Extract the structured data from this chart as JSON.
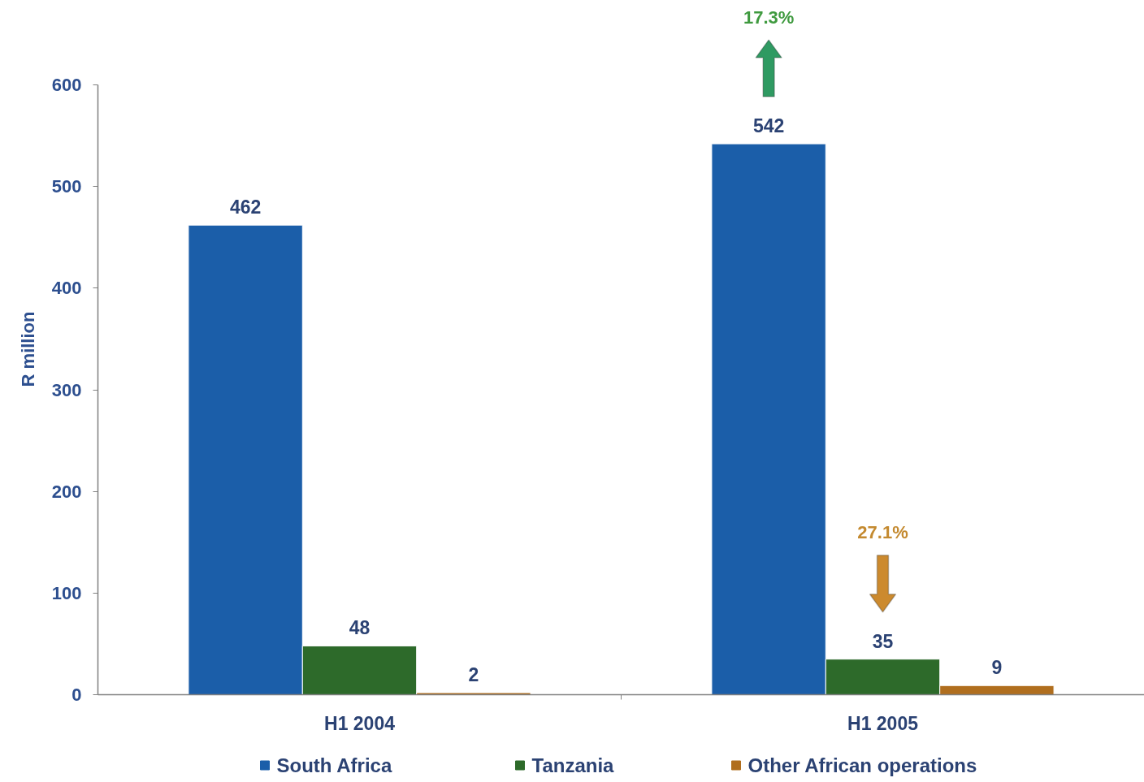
{
  "chart_data": {
    "type": "bar",
    "ylabel": "R million",
    "categories": [
      "H1 2004",
      "H1 2005"
    ],
    "series": [
      {
        "name": "South Africa",
        "color": "#1b5ea9",
        "values": [
          462,
          542
        ]
      },
      {
        "name": "Tanzania",
        "color": "#2d6a2a",
        "values": [
          48,
          35
        ]
      },
      {
        "name": "Other African operations",
        "color": "#b06e1e",
        "values": [
          2,
          9
        ]
      }
    ],
    "ylim": [
      0,
      600
    ],
    "yticks": [
      0,
      100,
      200,
      300,
      400,
      500,
      600
    ],
    "data_labels": true,
    "legend": "bottom",
    "annotations": [
      "17.3%",
      "27.1%"
    ]
  }
}
